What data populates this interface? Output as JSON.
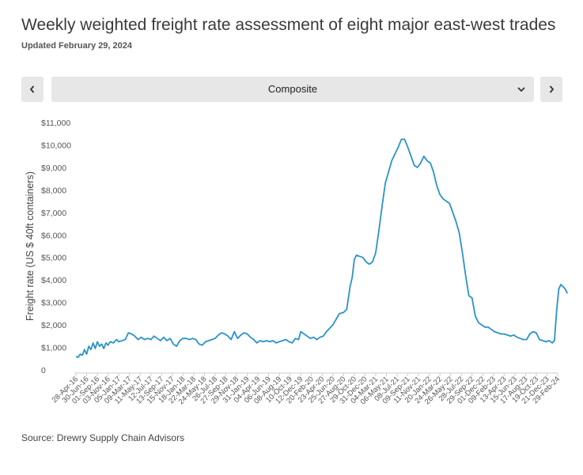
{
  "header": {
    "title": "Weekly weighted freight rate assessment of eight major east-west trades",
    "subtitle": "Updated February 29, 2024"
  },
  "controls": {
    "prev_icon": "chevron-left-icon",
    "next_icon": "chevron-right-icon",
    "selector_value": "Composite",
    "selector_icon": "chevron-down-icon"
  },
  "footer": {
    "source": "Source: Drewry Supply Chain Advisors"
  },
  "chart_data": {
    "type": "line",
    "title": "",
    "ylabel": "Freight rate (US $ 40ft containers)",
    "xlabel": "",
    "ylim": [
      0,
      11000
    ],
    "yticks": [
      {
        "value": 0,
        "label": "0"
      },
      {
        "value": 1000,
        "label": "$1,000"
      },
      {
        "value": 2000,
        "label": "$2,000"
      },
      {
        "value": 3000,
        "label": "$3,000"
      },
      {
        "value": 4000,
        "label": "$4,000"
      },
      {
        "value": 5000,
        "label": "$5,000"
      },
      {
        "value": 6000,
        "label": "$6,000"
      },
      {
        "value": 7000,
        "label": "$7,000"
      },
      {
        "value": 8000,
        "label": "$8,000"
      },
      {
        "value": 9000,
        "label": "$9,000"
      },
      {
        "value": 10000,
        "label": "$10,000"
      },
      {
        "value": 11000,
        "label": "$11,000"
      }
    ],
    "xticks": [
      "28-Apr-16",
      "30-Jun-16",
      "01-Sep-16",
      "03-Nov-16",
      "05-Jan-17",
      "09-Mar-17",
      "11-May-17",
      "12-Jul-17",
      "13-Sep-17",
      "15-Nov-17",
      "18-Jan-18",
      "22-Mar-18",
      "24-May-18",
      "26-Jul-18",
      "27-Sep-18",
      "29-Nov-18",
      "31-Jan-19",
      "04-Apr-19",
      "06-Jun-19",
      "08-Aug-19",
      "10-Oct-19",
      "12-Dec-19",
      "20-Feb-20",
      "23-Apr-20",
      "25-Jun-20",
      "27-Aug-20",
      "29-Oct-20",
      "31-Dec-20",
      "04-Mar-21",
      "06-May-21",
      "08-Jul-21",
      "09-Sep-21",
      "11-Nov-21",
      "20-Jan-22",
      "24-Mar-22",
      "26-May-22",
      "28-Jul-22",
      "29-Sep-22",
      "01-Dec-22",
      "09-Feb-23",
      "13-Apr-23",
      "15-Jun-23",
      "17-Aug-23",
      "19-Oct-23",
      "21-Dec-23",
      "29-Feb-24"
    ],
    "line_color": "#2a93c9",
    "grid": false,
    "series": [
      {
        "values": [
          [
            0,
            600
          ],
          [
            0.2,
            560
          ],
          [
            0.4,
            700
          ],
          [
            0.6,
            650
          ],
          [
            0.8,
            900
          ],
          [
            1.0,
            700
          ],
          [
            1.2,
            1050
          ],
          [
            1.4,
            900
          ],
          [
            1.6,
            1200
          ],
          [
            1.8,
            950
          ],
          [
            2.0,
            1250
          ],
          [
            2.2,
            1050
          ],
          [
            2.4,
            1150
          ],
          [
            2.6,
            950
          ],
          [
            2.8,
            1200
          ],
          [
            3.0,
            1100
          ],
          [
            3.2,
            1250
          ],
          [
            3.5,
            1200
          ],
          [
            3.8,
            1350
          ],
          [
            4.0,
            1250
          ],
          [
            4.3,
            1300
          ],
          [
            4.6,
            1350
          ],
          [
            4.9,
            1650
          ],
          [
            5.2,
            1600
          ],
          [
            5.5,
            1500
          ],
          [
            5.8,
            1350
          ],
          [
            6.1,
            1450
          ],
          [
            6.4,
            1350
          ],
          [
            6.7,
            1400
          ],
          [
            7.0,
            1350
          ],
          [
            7.3,
            1500
          ],
          [
            7.6,
            1400
          ],
          [
            7.9,
            1300
          ],
          [
            8.2,
            1450
          ],
          [
            8.5,
            1300
          ],
          [
            8.8,
            1400
          ],
          [
            9.1,
            1150
          ],
          [
            9.4,
            1050
          ],
          [
            9.7,
            1300
          ],
          [
            10.0,
            1400
          ],
          [
            10.3,
            1400
          ],
          [
            10.6,
            1350
          ],
          [
            10.9,
            1400
          ],
          [
            11.2,
            1350
          ],
          [
            11.5,
            1150
          ],
          [
            11.8,
            1100
          ],
          [
            12.1,
            1250
          ],
          [
            12.4,
            1300
          ],
          [
            12.7,
            1350
          ],
          [
            13.0,
            1400
          ],
          [
            13.3,
            1550
          ],
          [
            13.6,
            1650
          ],
          [
            13.9,
            1600
          ],
          [
            14.2,
            1500
          ],
          [
            14.5,
            1350
          ],
          [
            14.8,
            1700
          ],
          [
            15.1,
            1400
          ],
          [
            15.4,
            1550
          ],
          [
            15.7,
            1650
          ],
          [
            16.0,
            1600
          ],
          [
            16.3,
            1450
          ],
          [
            16.6,
            1350
          ],
          [
            16.9,
            1200
          ],
          [
            17.2,
            1300
          ],
          [
            17.5,
            1250
          ],
          [
            17.8,
            1300
          ],
          [
            18.1,
            1250
          ],
          [
            18.4,
            1300
          ],
          [
            18.7,
            1200
          ],
          [
            19.0,
            1250
          ],
          [
            19.3,
            1300
          ],
          [
            19.6,
            1350
          ],
          [
            19.9,
            1250
          ],
          [
            20.2,
            1200
          ],
          [
            20.5,
            1400
          ],
          [
            20.8,
            1350
          ],
          [
            21.0,
            1700
          ],
          [
            21.3,
            1600
          ],
          [
            21.6,
            1500
          ],
          [
            21.9,
            1400
          ],
          [
            22.2,
            1450
          ],
          [
            22.5,
            1350
          ],
          [
            22.8,
            1450
          ],
          [
            23.1,
            1500
          ],
          [
            23.4,
            1700
          ],
          [
            23.7,
            1850
          ],
          [
            24.0,
            2000
          ],
          [
            24.3,
            2250
          ],
          [
            24.6,
            2500
          ],
          [
            25.0,
            2550
          ],
          [
            25.3,
            2700
          ],
          [
            25.6,
            3700
          ],
          [
            25.8,
            4100
          ],
          [
            26.0,
            4900
          ],
          [
            26.2,
            5100
          ],
          [
            26.5,
            5050
          ],
          [
            26.8,
            5000
          ],
          [
            27.1,
            4800
          ],
          [
            27.4,
            4700
          ],
          [
            27.7,
            4800
          ],
          [
            28.0,
            5200
          ],
          [
            28.3,
            6200
          ],
          [
            28.6,
            7300
          ],
          [
            28.9,
            8300
          ],
          [
            29.2,
            8800
          ],
          [
            29.5,
            9300
          ],
          [
            29.8,
            9600
          ],
          [
            30.1,
            9900
          ],
          [
            30.4,
            10250
          ],
          [
            30.7,
            10250
          ],
          [
            31.0,
            9900
          ],
          [
            31.3,
            9500
          ],
          [
            31.6,
            9100
          ],
          [
            31.9,
            9000
          ],
          [
            32.2,
            9200
          ],
          [
            32.5,
            9500
          ],
          [
            32.8,
            9300
          ],
          [
            33.1,
            9200
          ],
          [
            33.4,
            8800
          ],
          [
            33.7,
            8200
          ],
          [
            34.0,
            7800
          ],
          [
            34.3,
            7600
          ],
          [
            34.6,
            7500
          ],
          [
            34.9,
            7400
          ],
          [
            35.2,
            7000
          ],
          [
            35.5,
            6600
          ],
          [
            35.8,
            6100
          ],
          [
            36.1,
            5200
          ],
          [
            36.4,
            4200
          ],
          [
            36.7,
            3300
          ],
          [
            37.0,
            3200
          ],
          [
            37.3,
            2400
          ],
          [
            37.6,
            2100
          ],
          [
            37.9,
            2000
          ],
          [
            38.2,
            1900
          ],
          [
            38.5,
            1900
          ],
          [
            38.8,
            1800
          ],
          [
            39.1,
            1700
          ],
          [
            39.4,
            1650
          ],
          [
            39.7,
            1600
          ],
          [
            40.0,
            1600
          ],
          [
            40.3,
            1550
          ],
          [
            40.6,
            1500
          ],
          [
            40.9,
            1550
          ],
          [
            41.2,
            1450
          ],
          [
            41.5,
            1400
          ],
          [
            41.8,
            1350
          ],
          [
            42.1,
            1350
          ],
          [
            42.4,
            1600
          ],
          [
            42.7,
            1700
          ],
          [
            43.0,
            1650
          ],
          [
            43.3,
            1350
          ],
          [
            43.6,
            1300
          ],
          [
            43.9,
            1250
          ],
          [
            44.2,
            1300
          ],
          [
            44.5,
            1200
          ],
          [
            44.7,
            1300
          ],
          [
            44.9,
            2600
          ],
          [
            45.1,
            3600
          ],
          [
            45.3,
            3800
          ],
          [
            45.5,
            3700
          ],
          [
            45.7,
            3600
          ],
          [
            45.9,
            3400
          ]
        ]
      }
    ]
  }
}
